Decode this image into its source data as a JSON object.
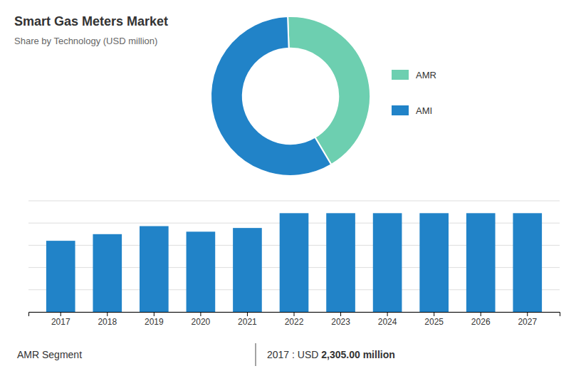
{
  "chart_data": [
    {
      "type": "pie",
      "title": "Smart Gas Meters Market",
      "subtitle": "Share by Technology (USD million)",
      "categories": [
        "AMR",
        "AMI"
      ],
      "values": [
        42,
        58
      ],
      "colors": [
        "#6dcfb0",
        "#2183c8"
      ],
      "legend": "right"
    },
    {
      "type": "bar",
      "categories": [
        "2017",
        "2018",
        "2019",
        "2020",
        "2021",
        "2022",
        "2023",
        "2024",
        "2025",
        "2026",
        "2027"
      ],
      "values": [
        2305,
        2520,
        2780,
        2600,
        2720,
        3200,
        3200,
        3200,
        3200,
        3200,
        3200
      ],
      "color": "#2183c8",
      "ylim": [
        0,
        3600
      ],
      "yticks": [
        0,
        720,
        1440,
        2160,
        2880,
        3600
      ],
      "grid": true,
      "tick_labels": "x",
      "annotations": [
        "AMR Segment",
        "2017 : USD ",
        "2,305.00 million"
      ]
    }
  ]
}
